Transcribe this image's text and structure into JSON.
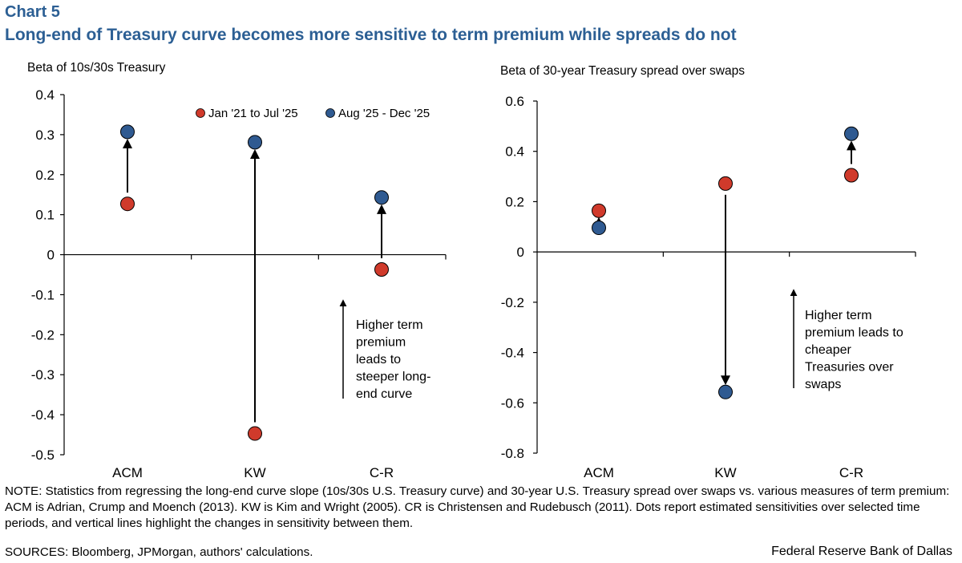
{
  "header": {
    "chart_label": "Chart 5",
    "title": "Long-end of Treasury curve becomes more sensitive to term premium while spreads do not"
  },
  "colors": {
    "title": "#2c5f94",
    "period1": "#d03a2b",
    "period2": "#2f5a91"
  },
  "chart_data": [
    {
      "type": "scatter",
      "ylabel": "Beta of 10s/30s Treasury",
      "categories": [
        "ACM",
        "KW",
        "C-R"
      ],
      "ylim": [
        -0.5,
        0.4
      ],
      "yticks": [
        "0.4",
        "0.3",
        "0.2",
        "0.1",
        "0",
        "-0.1",
        "-0.2",
        "-0.3",
        "-0.4",
        "-0.5"
      ],
      "series": [
        {
          "name": "Jan '21 to Jul '25",
          "values": [
            0.127,
            -0.447,
            -0.037
          ]
        },
        {
          "name": "Aug '25 - Dec '25",
          "values": [
            0.307,
            0.281,
            0.143
          ]
        }
      ],
      "legend": "top-right",
      "annotation": [
        "Higher term",
        "premium",
        "leads to",
        "steeper long-",
        "end curve"
      ]
    },
    {
      "type": "scatter",
      "ylabel": "Beta of 30-year Treasury spread over swaps",
      "categories": [
        "ACM",
        "KW",
        "C-R"
      ],
      "ylim": [
        -0.8,
        0.6
      ],
      "yticks": [
        "0.6",
        "0.4",
        "0.2",
        "0",
        "-0.2",
        "-0.4",
        "-0.6",
        "-0.8"
      ],
      "series": [
        {
          "name": "Jan '21 to Jul '25",
          "values": [
            0.164,
            0.272,
            0.305
          ]
        },
        {
          "name": "Aug '25 - Dec '25",
          "values": [
            0.096,
            -0.557,
            0.47
          ]
        }
      ],
      "annotation": [
        "Higher term",
        "premium leads to",
        "cheaper",
        "Treasuries over",
        "swaps"
      ]
    }
  ],
  "footer": {
    "note": "NOTE: Statistics from regressing the long-end curve slope (10s/30s U.S. Treasury curve) and 30-year U.S. Treasury spread over swaps vs. various measures of term premium: ACM is Adrian, Crump and Moench (2013). KW is Kim and Wright (2005). CR is Christensen and Rudebusch (2011). Dots report estimated sensitivities over selected time periods, and vertical lines highlight the changes in sensitivity between them.",
    "sources": "SOURCES: Bloomberg, JPMorgan, authors' calculations.",
    "brand": "Federal Reserve Bank of Dallas"
  }
}
